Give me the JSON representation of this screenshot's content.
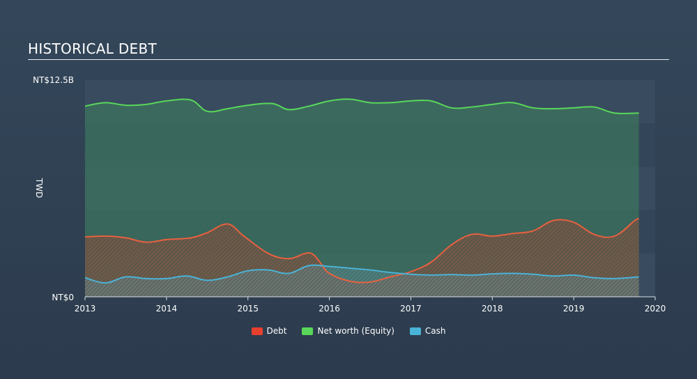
{
  "chart_data": {
    "type": "area",
    "title": "HISTORICAL DEBT",
    "y_unit_label": "TWD",
    "ylim": [
      0,
      12.5
    ],
    "y_tick_labels": [
      "NT$0",
      "NT$12.5B"
    ],
    "x_ticks": [
      2013,
      2014,
      2015,
      2016,
      2017,
      2018,
      2019,
      2020
    ],
    "grid": true,
    "legend_position": "bottom-center",
    "series": [
      {
        "name": "Debt",
        "color": "#e8402f",
        "line_color": "#e9603f",
        "x": [
          2013.0,
          2013.25,
          2013.5,
          2013.75,
          2014.0,
          2014.3,
          2014.5,
          2014.75,
          2014.95,
          2015.25,
          2015.5,
          2015.7,
          2015.8,
          2015.9,
          2016.0,
          2016.25,
          2016.5,
          2016.75,
          2017.0,
          2017.25,
          2017.5,
          2017.75,
          2018.0,
          2018.25,
          2018.5,
          2018.75,
          2019.0,
          2019.25,
          2019.5,
          2019.75,
          2019.8
        ],
        "values": [
          3.45,
          3.5,
          3.4,
          3.15,
          3.3,
          3.4,
          3.7,
          4.2,
          3.5,
          2.5,
          2.2,
          2.5,
          2.45,
          1.9,
          1.35,
          0.9,
          0.85,
          1.15,
          1.45,
          2.0,
          3.0,
          3.6,
          3.5,
          3.65,
          3.8,
          4.4,
          4.3,
          3.6,
          3.5,
          4.4,
          4.5
        ]
      },
      {
        "name": "Net worth (Equity)",
        "color": "#58d85a",
        "line_color": "#58d85a",
        "x": [
          2013.0,
          2013.25,
          2013.5,
          2013.75,
          2014.0,
          2014.3,
          2014.5,
          2014.75,
          2015.0,
          2015.3,
          2015.5,
          2015.75,
          2016.0,
          2016.25,
          2016.5,
          2016.75,
          2017.0,
          2017.25,
          2017.5,
          2017.75,
          2018.0,
          2018.25,
          2018.5,
          2018.75,
          2019.0,
          2019.25,
          2019.5,
          2019.8
        ],
        "values": [
          11.0,
          11.2,
          11.05,
          11.1,
          11.3,
          11.35,
          10.7,
          10.85,
          11.05,
          11.15,
          10.8,
          11.0,
          11.3,
          11.4,
          11.2,
          11.2,
          11.3,
          11.3,
          10.9,
          10.95,
          11.1,
          11.2,
          10.9,
          10.85,
          10.9,
          10.95,
          10.6,
          10.6
        ]
      },
      {
        "name": "Cash",
        "color": "#4ab3d8",
        "line_color": "#4ab3d8",
        "x": [
          2013.0,
          2013.25,
          2013.5,
          2013.75,
          2014.0,
          2014.25,
          2014.5,
          2014.75,
          2015.0,
          2015.25,
          2015.5,
          2015.75,
          2016.0,
          2016.25,
          2016.5,
          2016.75,
          2017.0,
          2017.25,
          2017.5,
          2017.75,
          2018.0,
          2018.25,
          2018.5,
          2018.75,
          2019.0,
          2019.25,
          2019.5,
          2019.8
        ],
        "values": [
          1.1,
          0.8,
          1.15,
          1.05,
          1.05,
          1.2,
          0.95,
          1.15,
          1.5,
          1.55,
          1.35,
          1.8,
          1.75,
          1.65,
          1.55,
          1.4,
          1.3,
          1.25,
          1.28,
          1.25,
          1.32,
          1.35,
          1.3,
          1.2,
          1.25,
          1.1,
          1.05,
          1.15
        ]
      }
    ]
  }
}
